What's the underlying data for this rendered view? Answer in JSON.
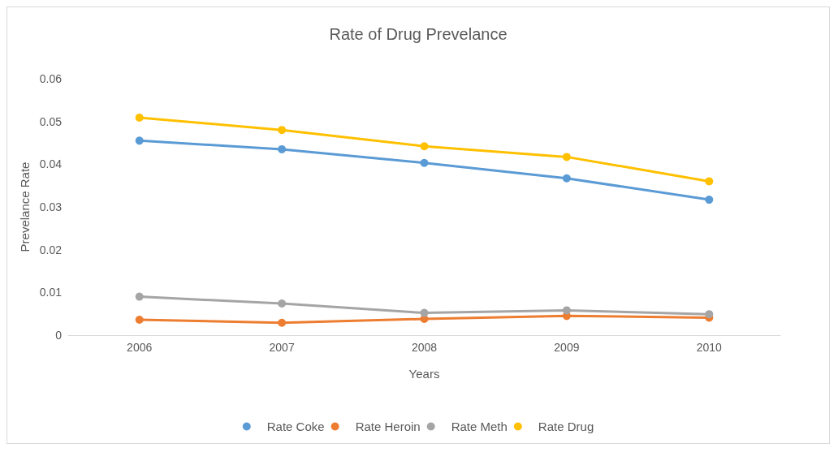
{
  "chart_data": {
    "type": "line",
    "title": "Rate of Drug Prevelance",
    "xlabel": "Years",
    "ylabel": "Prevelance Rate",
    "categories": [
      "2006",
      "2007",
      "2008",
      "2009",
      "2010"
    ],
    "series": [
      {
        "name": "Rate Coke",
        "color": "#5b9bd5",
        "values": [
          0.0455,
          0.0435,
          0.0403,
          0.0367,
          0.0317
        ]
      },
      {
        "name": "Rate Heroin",
        "color": "#ed7d31",
        "values": [
          0.0036,
          0.0029,
          0.0038,
          0.0045,
          0.0041
        ]
      },
      {
        "name": "Rate Meth",
        "color": "#a5a5a5",
        "values": [
          0.009,
          0.0074,
          0.0052,
          0.0058,
          0.0049
        ]
      },
      {
        "name": "Rate Drug",
        "color": "#ffc000",
        "values": [
          0.0509,
          0.048,
          0.0442,
          0.0417,
          0.036
        ]
      }
    ],
    "ylim": [
      0,
      0.06
    ],
    "yticks": [
      0,
      0.01,
      0.02,
      0.03,
      0.04,
      0.05,
      0.06
    ],
    "grid": false,
    "legend": "bottom",
    "marker": "circle",
    "line_style": "solid"
  }
}
